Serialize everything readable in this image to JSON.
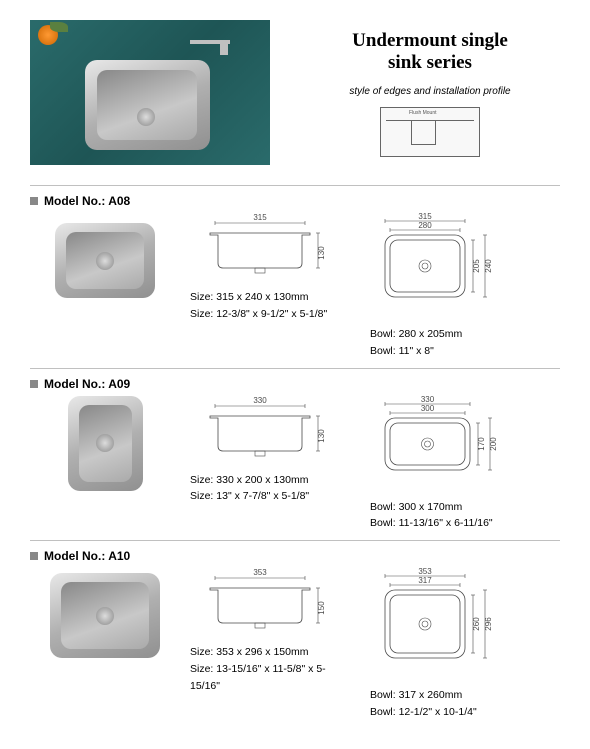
{
  "header": {
    "title_line1": "Undermount single",
    "title_line2": "sink series",
    "subtitle": "style of edges and installation profile",
    "profile_label": "Flush Mount"
  },
  "models": [
    {
      "id": "A08",
      "label": "Model No.: A08",
      "dim_top": "315",
      "dim_side": "130",
      "size_mm": "Size: 315 x 240 x 130mm",
      "size_in": "Size: 12-3/8\" x 9-1/2\" x 5-1/8\"",
      "bowl_top1": "315",
      "bowl_top2": "280",
      "bowl_side1": "205",
      "bowl_side2": "240",
      "bowl_mm": "Bowl: 280 x 205mm",
      "bowl_in": "Bowl: 11\" x 8\"",
      "photo_w": 100,
      "photo_h": 75
    },
    {
      "id": "A09",
      "label": "Model No.: A09",
      "dim_top": "330",
      "dim_side": "130",
      "size_mm": "Size: 330 x 200 x 130mm",
      "size_in": "Size: 13\" x 7-7/8\" x 5-1/8\"",
      "bowl_top1": "330",
      "bowl_top2": "300",
      "bowl_side1": "170",
      "bowl_side2": "200",
      "bowl_mm": "Bowl: 300 x 170mm",
      "bowl_in": "Bowl: 11-13/16\" x 6-11/16\"",
      "photo_w": 75,
      "photo_h": 95
    },
    {
      "id": "A10",
      "label": "Model No.: A10",
      "dim_top": "353",
      "dim_side": "150",
      "size_mm": "Size: 353 x 296 x 150mm",
      "size_in": "Size: 13-15/16\" x 11-5/8\" x 5-15/16\"",
      "bowl_top1": "353",
      "bowl_top2": "317",
      "bowl_side1": "260",
      "bowl_side2": "296",
      "bowl_mm": "Bowl: 317 x 260mm",
      "bowl_in": "Bowl: 12-1/2\" x 10-1/4\"",
      "photo_w": 110,
      "photo_h": 85
    }
  ],
  "colors": {
    "steel_light": "#e8e8e8",
    "steel_dark": "#909090",
    "line": "#4a4a4a"
  }
}
